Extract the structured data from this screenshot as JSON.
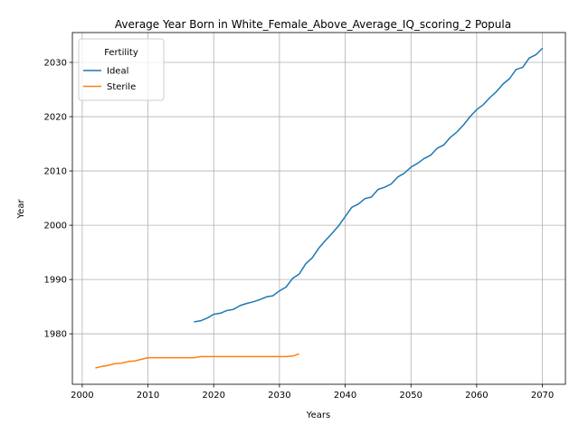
{
  "chart_data": {
    "type": "line",
    "title": "Average Year Born in White_Female_Above_Average_IQ_scoring_2 Popula",
    "xlabel": "Years",
    "ylabel": "Year",
    "xlim": [
      1998.5,
      2073.5
    ],
    "ylim": [
      1970.7,
      2035.5
    ],
    "xticks": [
      2000,
      2010,
      2020,
      2030,
      2040,
      2050,
      2060,
      2070
    ],
    "yticks": [
      1980,
      1990,
      2000,
      2010,
      2020,
      2030
    ],
    "grid": true,
    "legend": {
      "title": "Fertility",
      "position": "top-left"
    },
    "series": [
      {
        "name": "Ideal",
        "color": "#1f77b4",
        "x": [
          2017,
          2018,
          2019,
          2020,
          2021,
          2022,
          2023,
          2024,
          2025,
          2026,
          2027,
          2028,
          2029,
          2030,
          2031,
          2032,
          2033,
          2034,
          2035,
          2036,
          2037,
          2038,
          2039,
          2040,
          2041,
          2042,
          2043,
          2044,
          2045,
          2046,
          2047,
          2048,
          2049,
          2050,
          2051,
          2052,
          2053,
          2054,
          2055,
          2056,
          2057,
          2058,
          2059,
          2060,
          2061,
          2062,
          2063,
          2064,
          2065,
          2066,
          2067,
          2068,
          2069,
          2070
        ],
        "y": [
          1982.2,
          1982.4,
          1982.9,
          1983.6,
          1983.8,
          1984.3,
          1984.5,
          1985.2,
          1985.6,
          1985.9,
          1986.3,
          1986.8,
          1987.0,
          1987.9,
          1988.6,
          1990.2,
          1991.0,
          1992.9,
          1994.0,
          1995.8,
          1997.2,
          1998.5,
          1999.9,
          2001.6,
          2003.3,
          2003.9,
          2004.9,
          2005.2,
          2006.6,
          2007.0,
          2007.6,
          2008.9,
          2009.6,
          2010.7,
          2011.4,
          2012.3,
          2012.9,
          2014.2,
          2014.8,
          2016.2,
          2017.2,
          2018.5,
          2020.0,
          2021.3,
          2022.2,
          2023.5,
          2024.6,
          2026.0,
          2027.0,
          2028.7,
          2029.1,
          2030.8,
          2031.4,
          2032.6
        ]
      },
      {
        "name": "Sterile",
        "color": "#ff7f0e",
        "x": [
          2002,
          2003,
          2004,
          2005,
          2006,
          2007,
          2008,
          2009,
          2010,
          2011,
          2012,
          2013,
          2014,
          2015,
          2016,
          2017,
          2018,
          2019,
          2020,
          2021,
          2022,
          2023,
          2024,
          2025,
          2026,
          2027,
          2028,
          2029,
          2030,
          2031,
          2032,
          2033
        ],
        "y": [
          1973.7,
          1974.0,
          1974.2,
          1974.5,
          1974.6,
          1974.9,
          1975.0,
          1975.3,
          1975.6,
          1975.6,
          1975.6,
          1975.6,
          1975.6,
          1975.6,
          1975.6,
          1975.6,
          1975.8,
          1975.8,
          1975.8,
          1975.8,
          1975.8,
          1975.8,
          1975.8,
          1975.8,
          1975.8,
          1975.8,
          1975.8,
          1975.8,
          1975.8,
          1975.8,
          1975.9,
          1976.3
        ]
      }
    ]
  }
}
